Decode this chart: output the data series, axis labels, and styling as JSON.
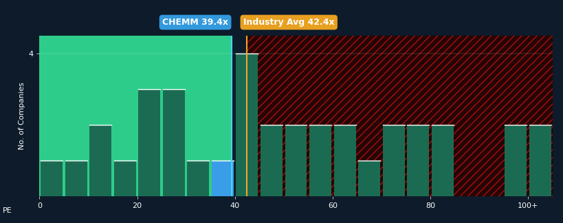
{
  "background_color": "#0d1b2a",
  "plot_bg_green": "#2dcc8a",
  "bar_color_dark": "#1b6b52",
  "bar_color_blue": "#3a9de8",
  "chemm_line_color": "#45d4f0",
  "industry_line_color": "#f5a623",
  "red_hatch_bg": "#250505",
  "red_hatch_color": "#cc1111",
  "chemm_value": 39.4,
  "industry_value": 42.4,
  "chemm_label": "CHEMM 39.4x",
  "industry_label": "Industry Avg 42.4x",
  "chemm_box_color": "#3399dd",
  "industry_box_color": "#e8a020",
  "ylabel": "No. of Companies",
  "xlabel_prefix": "PE",
  "ymax": 4.5,
  "xmax": 105,
  "xtick_labels": [
    "0",
    "20",
    "40",
    "60",
    "80",
    "100+"
  ],
  "xtick_positions": [
    0,
    20,
    40,
    60,
    80,
    100
  ],
  "bins": [
    0,
    5,
    10,
    15,
    20,
    25,
    30,
    35,
    40,
    45,
    50,
    55,
    60,
    65,
    70,
    75,
    80,
    85,
    90,
    95,
    100,
    105
  ],
  "bar_heights": [
    1,
    1,
    2,
    1,
    3,
    3,
    1,
    1,
    4,
    2,
    2,
    2,
    2,
    1,
    2,
    2,
    2,
    0,
    0,
    2,
    2
  ],
  "chemm_bin_index": 7,
  "tick_fontsize": 8,
  "label_fontsize": 8,
  "annot_fontsize": 9
}
